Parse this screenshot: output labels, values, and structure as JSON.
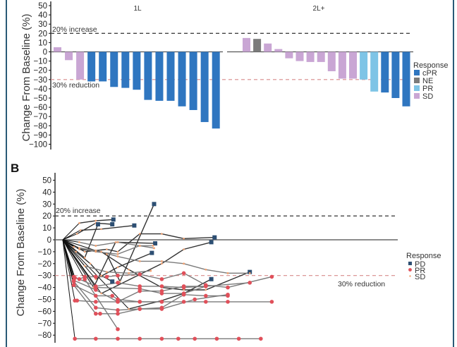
{
  "chart_data": [
    {
      "type": "bar",
      "panel": "A",
      "ylabel": "Change From Baseline (%)",
      "ylim": [
        -100,
        50
      ],
      "yticks": [
        50,
        40,
        30,
        20,
        10,
        0,
        -10,
        -20,
        -30,
        -40,
        -50,
        -60,
        -70,
        -80,
        -90,
        -100
      ],
      "ytick_labels": [
        "50",
        "40",
        "30",
        "20",
        "10",
        "0",
        "−10",
        "−20",
        "−30",
        "−40",
        "−50",
        "−60",
        "−70",
        "−80",
        "−90",
        "−100"
      ],
      "reference_lines": [
        {
          "value": 20,
          "label": "20% increase",
          "color": "#444444",
          "style": "dashed"
        },
        {
          "value": -30,
          "label": "30% reduction",
          "color": "#d88a8a",
          "style": "dashed"
        }
      ],
      "groups": [
        {
          "label": "1L",
          "bars": [
            {
              "value": 5,
              "response": "SD"
            },
            {
              "value": -9,
              "response": "SD"
            },
            {
              "value": -30,
              "response": "SD"
            },
            {
              "value": -32,
              "response": "cPR"
            },
            {
              "value": -32,
              "response": "cPR"
            },
            {
              "value": -38,
              "response": "cPR"
            },
            {
              "value": -39,
              "response": "cPR"
            },
            {
              "value": -41,
              "response": "cPR"
            },
            {
              "value": -52,
              "response": "cPR"
            },
            {
              "value": -53,
              "response": "cPR"
            },
            {
              "value": -53,
              "response": "cPR"
            },
            {
              "value": -59,
              "response": "cPR"
            },
            {
              "value": -63,
              "response": "cPR"
            },
            {
              "value": -76,
              "response": "cPR"
            },
            {
              "value": -83,
              "response": "cPR"
            }
          ]
        },
        {
          "label": "2L+",
          "bars": [
            {
              "value": 15,
              "response": "SD"
            },
            {
              "value": 14,
              "response": "NE"
            },
            {
              "value": 9,
              "response": "SD"
            },
            {
              "value": 3,
              "response": "SD"
            },
            {
              "value": -7,
              "response": "SD"
            },
            {
              "value": -10,
              "response": "SD"
            },
            {
              "value": -11,
              "response": "SD"
            },
            {
              "value": -11,
              "response": "SD"
            },
            {
              "value": -21,
              "response": "SD"
            },
            {
              "value": -29,
              "response": "SD"
            },
            {
              "value": -29,
              "response": "SD"
            },
            {
              "value": -30,
              "response": "PR"
            },
            {
              "value": -43,
              "response": "PR"
            },
            {
              "value": -44,
              "response": "cPR"
            },
            {
              "value": -50,
              "response": "cPR"
            },
            {
              "value": -59,
              "response": "cPR"
            }
          ]
        }
      ],
      "legend": {
        "title": "Response",
        "placement": "right",
        "entries": [
          {
            "label": "cPR",
            "color": "#2f76c0"
          },
          {
            "label": "NE",
            "color": "#7b7b7b"
          },
          {
            "label": "PR",
            "color": "#7ec4e6"
          },
          {
            "label": "SD",
            "color": "#c9a6d4"
          }
        ]
      }
    },
    {
      "type": "line",
      "panel": "B",
      "panel_label": "B",
      "ylabel": "Change From Baseline (%)",
      "ylim": [
        -85,
        55
      ],
      "yticks": [
        50,
        40,
        30,
        20,
        10,
        0,
        -10,
        -20,
        -30,
        -40,
        -50,
        -60,
        -70,
        -80
      ],
      "ytick_labels": [
        "50",
        "40",
        "30",
        "20",
        "10",
        "0",
        "−10",
        "−20",
        "−30",
        "−40",
        "−50",
        "−60",
        "−70",
        "−80"
      ],
      "xlim": [
        0,
        19
      ],
      "reference_lines": [
        {
          "value": 20,
          "label": "20% increase",
          "color": "#444444",
          "style": "dashed"
        },
        {
          "value": -30,
          "label": "30% reduction",
          "color": "#d88a8a",
          "style": "dashed"
        }
      ],
      "legend": {
        "title": "Response",
        "placement": "right",
        "entries": [
          {
            "label": "PD",
            "color": "#2d4f73",
            "marker": "square"
          },
          {
            "label": "PR",
            "color": "#e0505a",
            "marker": "circle"
          },
          {
            "label": "SD",
            "color": "#f0a070",
            "marker": "dot"
          }
        ]
      },
      "series": [
        {
          "response": "PD",
          "points": [
            [
              0,
              0
            ],
            [
              1.5,
              14
            ],
            [
              3,
              16
            ],
            [
              4.6,
              17
            ]
          ]
        },
        {
          "response": "PD",
          "points": [
            [
              0,
              0
            ],
            [
              1.3,
              5
            ],
            [
              3,
              14
            ],
            [
              4.5,
              13
            ]
          ]
        },
        {
          "response": "PD",
          "points": [
            [
              0,
              0
            ],
            [
              2,
              -15
            ],
            [
              3.2,
              13
            ]
          ]
        },
        {
          "response": "PD",
          "points": [
            [
              0,
              0
            ],
            [
              1.6,
              8
            ],
            [
              3.5,
              9
            ],
            [
              6.5,
              12
            ]
          ]
        },
        {
          "response": "PD",
          "points": [
            [
              0,
              0
            ],
            [
              2.8,
              -40
            ],
            [
              4.8,
              -2
            ],
            [
              8.4,
              -3
            ]
          ]
        },
        {
          "response": "PD",
          "points": [
            [
              0,
              0
            ],
            [
              3,
              -33
            ],
            [
              5,
              -23
            ],
            [
              8.1,
              -11
            ]
          ]
        },
        {
          "response": "PD",
          "points": [
            [
              0,
              0
            ],
            [
              3.5,
              -45
            ],
            [
              9,
              -20
            ],
            [
              11,
              -8
            ],
            [
              13.5,
              -2
            ]
          ]
        },
        {
          "response": "PD",
          "points": [
            [
              0,
              0
            ],
            [
              1.2,
              -10
            ],
            [
              2.5,
              -20
            ],
            [
              3.5,
              -30
            ],
            [
              4.5,
              -35
            ]
          ]
        },
        {
          "response": "PD",
          "points": [
            [
              0,
              0
            ],
            [
              6,
              -58
            ],
            [
              9,
              -51
            ],
            [
              11,
              -45
            ],
            [
              13.5,
              -33
            ]
          ]
        },
        {
          "response": "PD",
          "points": [
            [
              0,
              0
            ],
            [
              4,
              -12
            ],
            [
              5.2,
              -35
            ],
            [
              8.3,
              30
            ]
          ]
        },
        {
          "response": "PD",
          "points": [
            [
              0,
              0
            ],
            [
              2,
              -10
            ],
            [
              4,
              -8
            ],
            [
              5,
              -10
            ],
            [
              7,
              5
            ],
            [
              9,
              5
            ],
            [
              11,
              1
            ],
            [
              13.8,
              2
            ]
          ]
        },
        {
          "response": "PD",
          "points": [
            [
              0,
              0
            ],
            [
              1.5,
              -8
            ],
            [
              3.5,
              -10
            ],
            [
              6,
              -25
            ],
            [
              9,
              -40
            ],
            [
              11,
              -42
            ],
            [
              13,
              -42
            ],
            [
              17,
              -27
            ]
          ]
        },
        {
          "response": "SD",
          "points": [
            [
              0,
              0
            ],
            [
              1.5,
              -2
            ],
            [
              3,
              -5
            ],
            [
              5,
              -2
            ],
            [
              7,
              -5
            ],
            [
              8.2,
              -5
            ]
          ]
        },
        {
          "response": "SD",
          "points": [
            [
              0,
              0
            ],
            [
              1,
              -6
            ],
            [
              3,
              -9
            ],
            [
              5,
              -14
            ],
            [
              7,
              -18
            ],
            [
              9,
              -18
            ],
            [
              11,
              -20
            ],
            [
              13,
              -25
            ],
            [
              15,
              -28
            ],
            [
              17,
              -28
            ]
          ]
        },
        {
          "response": "SD",
          "points": [
            [
              0,
              0
            ],
            [
              2,
              -22
            ],
            [
              4,
              -27
            ],
            [
              6,
              -28
            ],
            [
              8,
              -26
            ]
          ]
        },
        {
          "response": "SD",
          "points": [
            [
              0,
              0
            ],
            [
              1.5,
              -7
            ],
            [
              3,
              -10
            ],
            [
              5,
              -12
            ],
            [
              7,
              -5
            ],
            [
              8.3,
              -7
            ]
          ]
        },
        {
          "response": "PR",
          "points": [
            [
              0,
              0
            ],
            [
              1.1,
              -32
            ],
            [
              1.5,
              -33
            ],
            [
              2,
              -31
            ],
            [
              3,
              -31
            ],
            [
              4,
              -31
            ],
            [
              5,
              -30
            ],
            [
              7,
              -29
            ],
            [
              9,
              -33
            ],
            [
              11,
              -28
            ],
            [
              13,
              -38
            ],
            [
              15,
              -40
            ],
            [
              19,
              -31
            ]
          ]
        },
        {
          "response": "PR",
          "points": [
            [
              0,
              0
            ],
            [
              1,
              -31
            ],
            [
              3,
              -39
            ],
            [
              5,
              -36
            ],
            [
              7,
              -39
            ],
            [
              9,
              -39
            ],
            [
              11,
              -40
            ],
            [
              13,
              -39
            ]
          ]
        },
        {
          "response": "PR",
          "points": [
            [
              0,
              0
            ],
            [
              1,
              -34
            ],
            [
              3,
              -42
            ],
            [
              5,
              -52
            ],
            [
              7,
              -43
            ],
            [
              9,
              -43
            ],
            [
              11,
              -39
            ],
            [
              13,
              -39
            ]
          ]
        },
        {
          "response": "PR",
          "points": [
            [
              0,
              0
            ],
            [
              1,
              -38
            ],
            [
              3,
              -47
            ],
            [
              4.5,
              -47
            ],
            [
              5,
              -50
            ],
            [
              7,
              -52
            ],
            [
              9,
              -52
            ]
          ]
        },
        {
          "response": "PR",
          "points": [
            [
              0,
              0
            ],
            [
              1.1,
              -51
            ],
            [
              1.3,
              -51
            ],
            [
              3,
              -52
            ],
            [
              5,
              -52
            ],
            [
              7,
              -52
            ],
            [
              9,
              -52
            ],
            [
              11,
              -52
            ],
            [
              13,
              -52
            ],
            [
              15,
              -52
            ],
            [
              19,
              -52
            ]
          ]
        },
        {
          "response": "PR",
          "points": [
            [
              0,
              0
            ],
            [
              1,
              -35
            ],
            [
              3,
              -57
            ],
            [
              5,
              -59
            ],
            [
              7,
              -58
            ],
            [
              9,
              -57
            ],
            [
              11,
              -46
            ],
            [
              13,
              -47
            ],
            [
              15,
              -47
            ]
          ]
        },
        {
          "response": "PR",
          "points": [
            [
              0,
              0
            ],
            [
              1,
              -38
            ],
            [
              3,
              -62
            ],
            [
              3.4,
              -62
            ],
            [
              5,
              -62
            ],
            [
              7,
              -58
            ],
            [
              9,
              -58
            ],
            [
              12,
              -50
            ],
            [
              15,
              -46
            ]
          ]
        },
        {
          "response": "PR",
          "points": [
            [
              0,
              0
            ],
            [
              2,
              -33
            ],
            [
              5,
              -75
            ]
          ]
        },
        {
          "response": "PR",
          "points": [
            [
              0,
              0
            ],
            [
              3,
              -40
            ],
            [
              7,
              -41
            ],
            [
              9,
              -45
            ],
            [
              11,
              -45
            ],
            [
              13,
              -39
            ],
            [
              17,
              -36
            ]
          ]
        },
        {
          "response": "PR",
          "points": [
            [
              0,
              0
            ],
            [
              1.1,
              -83
            ],
            [
              3,
              -83
            ],
            [
              5,
              -83
            ],
            [
              7,
              -83
            ],
            [
              9,
              -83
            ],
            [
              10.5,
              -83
            ],
            [
              12,
              -83
            ],
            [
              14,
              -83
            ],
            [
              16,
              -83
            ],
            [
              18,
              -83
            ]
          ]
        }
      ]
    }
  ],
  "panelA": {
    "ylabel": "Change From Baseline (%)",
    "group1": "1L",
    "group2": "2L+",
    "ref_up": "20% increase",
    "ref_down": "30% reduction",
    "legend_title": "Response"
  },
  "panelB": {
    "label": "B",
    "ylabel": "Change From Baseline (%)",
    "ref_up": "20% increase",
    "ref_down": "30% reduction",
    "legend_title": "Response"
  }
}
